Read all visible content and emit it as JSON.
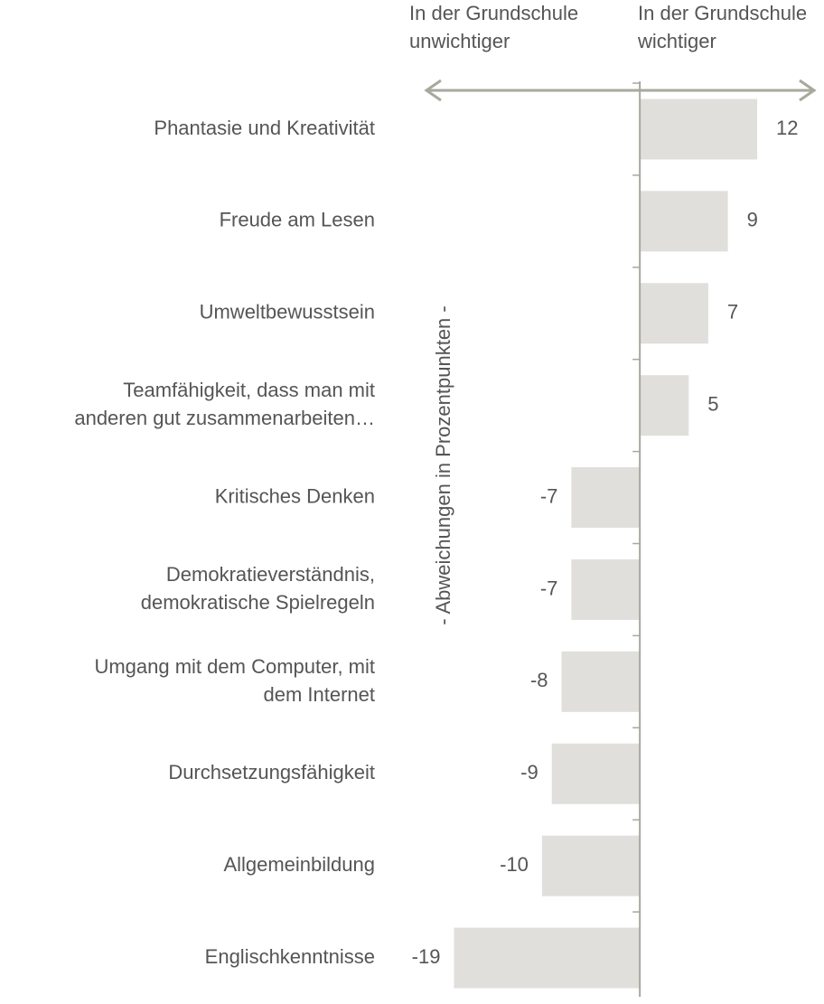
{
  "chart_data": {
    "type": "bar",
    "orientation": "horizontal",
    "left_header": "In der Grundschule\nunwichtiger",
    "right_header": "In der Grundschule\nwichtiger",
    "axis_label": "- Abweichungen in Prozentpunkten -",
    "categories": [
      "Phantasie und Kreativität",
      "Freude am Lesen",
      "Umweltbewusstsein",
      "Teamfähigkeit, dass man mit\nanderen gut zusammenarbeiten…",
      "Kritisches Denken",
      "Demokratieverständnis,\ndemokratische Spielregeln",
      "Umgang mit dem Computer, mit\ndem Internet",
      "Durchsetzungsfähigkeit",
      "Allgemeinbildung",
      "Englischkenntnisse"
    ],
    "values": [
      12,
      9,
      7,
      5,
      -7,
      -7,
      -8,
      -9,
      -10,
      -19
    ],
    "color": "#e0dfdb",
    "axis_color": "#a6a99c",
    "xlim": [
      -22,
      18
    ]
  }
}
